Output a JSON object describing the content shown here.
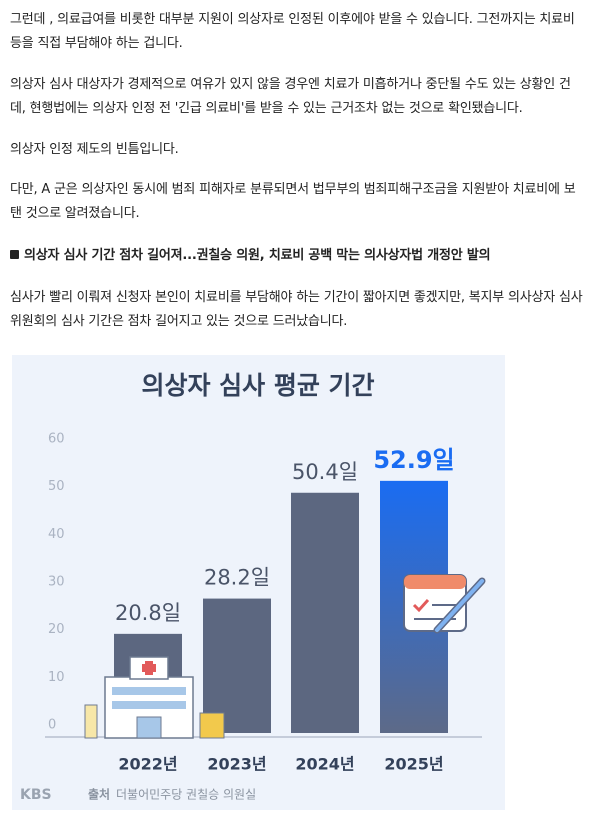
{
  "article": {
    "paragraphs": [
      "그런데 , 의료급여를 비롯한 대부분 지원이 의상자로 인정된 이후에야 받을 수 있습니다. 그전까지는 치료비 등을 직접 부담해야 하는 겁니다.",
      "의상자 심사 대상자가 경제적으로 여유가 있지 않을 경우엔 치료가 미흡하거나 중단될 수도 있는 상황인 건데, 현행법에는 의상자 인정 전 '긴급 의료비'를 받을 수 있는 근거조차 없는 것으로 확인됐습니다.",
      "의상자 인정 제도의 빈틈입니다.",
      "다만, A 군은 의상자인 동시에 범죄 피해자로 분류되면서 법무부의 범죄피해구조금을 지원받아 치료비에 보탠 것으로 알려졌습니다."
    ],
    "subheading": "의상자 심사 기간 점차 길어져...권칠승 의원, 치료비 공백 막는 의사상자법 개정안 발의",
    "closing": "심사가 빨리 이뤄져 신청자 본인이 치료비를 부담해야 하는 기간이 짧아지면 좋겠지만, 복지부 의사상자 심사위원회의 심사 기간은 점차 길어지고 있는 것으로 드러났습니다."
  },
  "chart_data": {
    "type": "bar",
    "title": "의상자 심사 평균 기간",
    "categories": [
      "2022년",
      "2023년",
      "2024년",
      "2025년"
    ],
    "values": [
      20.8,
      28.2,
      50.4,
      52.9
    ],
    "value_labels": [
      "20.8일",
      "28.2일",
      "50.4일",
      "52.9일"
    ],
    "colors": [
      "#5c6780",
      "#5c6780",
      "#5c6780",
      "#1a6cf2"
    ],
    "ylim": [
      0,
      60
    ],
    "yticks": [
      0,
      10,
      20,
      30,
      40,
      50,
      60
    ],
    "logo": "KBS",
    "source_label": "출처",
    "source": "더불어민주당 권칠승 의원실"
  }
}
